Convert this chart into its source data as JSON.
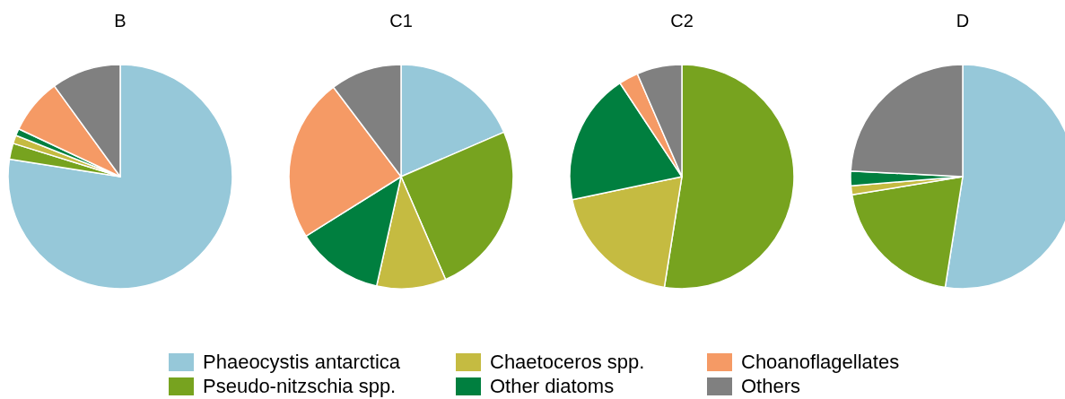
{
  "chart_data": [
    {
      "type": "pie",
      "title": "B",
      "legend": "bottom",
      "categories": [
        "Phaeocystis antarctica",
        "Pseudo-nitzschia spp.",
        "Chaetoceros spp.",
        "Other diatoms",
        "Choanoflagellates",
        "Others"
      ],
      "values": [
        77.5,
        2.3,
        1.2,
        1,
        8,
        10
      ],
      "colors": [
        "#96c8d9",
        "#77a31f",
        "#c5bb41",
        "#007f3f",
        "#f59a65",
        "#808080"
      ]
    },
    {
      "type": "pie",
      "title": "C1",
      "categories": [
        null,
        null,
        null,
        null,
        null,
        null
      ],
      "values": [
        18.5,
        25,
        10,
        12.6,
        23.6,
        10.3
      ],
      "colors": [
        "#96c8d9",
        "#77a31f",
        "#c5bb41",
        "#007f3f",
        "#f59a65",
        "#808080"
      ]
    },
    {
      "type": "pie",
      "title": "C2",
      "categories": [
        null,
        null,
        null,
        null,
        null,
        null
      ],
      "values": [
        0,
        52.5,
        19.2,
        19,
        2.8,
        6.5
      ],
      "colors": [
        "#96c8d9",
        "#77a31f",
        "#c5bb41",
        "#007f3f",
        "#f59a65",
        "#808080"
      ]
    },
    {
      "type": "pie",
      "title": "D",
      "categories": [
        null,
        null,
        null,
        null,
        null,
        null
      ],
      "values": [
        52.5,
        19.9,
        1.3,
        2.1,
        0,
        24.2
      ],
      "colors": [
        "#96c8d9",
        "#77a31f",
        "#c5bb41",
        "#007f3f",
        "#f59a65",
        "#808080"
      ]
    }
  ]
}
